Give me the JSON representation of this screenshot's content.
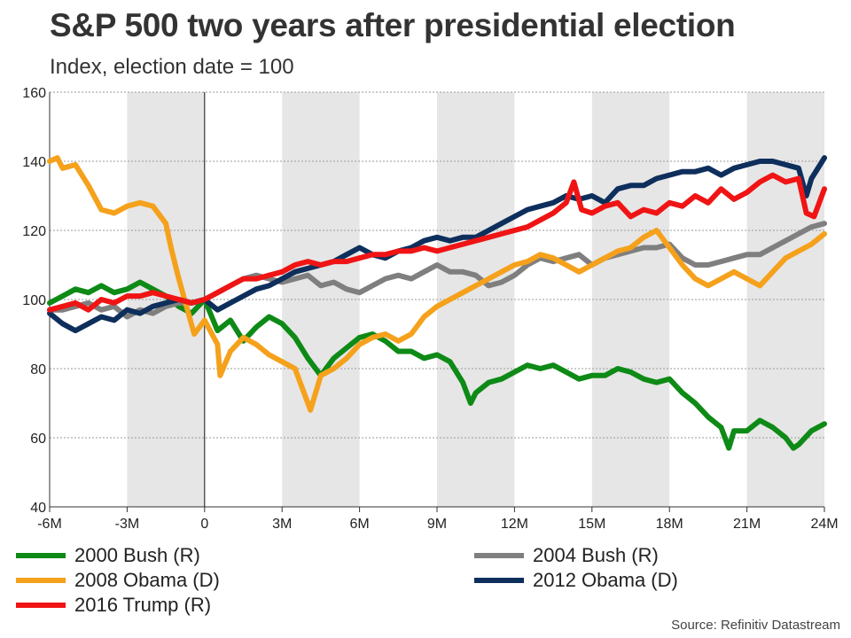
{
  "title": "S&P 500 two years after presidential election",
  "subtitle": "Index, election date = 100",
  "source": "Source: Refinitiv Datastream",
  "chart_data": {
    "type": "line",
    "title": "S&P 500 two years after presidential election",
    "ylabel": "Index, election date = 100",
    "xlabel": "",
    "xlim": [
      -6,
      24
    ],
    "ylim": [
      40,
      160
    ],
    "x_ticks": [
      -6,
      -3,
      0,
      3,
      6,
      9,
      12,
      15,
      18,
      21,
      24
    ],
    "x_tick_labels": [
      "-6M",
      "-3M",
      "0",
      "3M",
      "6M",
      "9M",
      "12M",
      "15M",
      "18M",
      "21M",
      "24M"
    ],
    "y_ticks": [
      40,
      60,
      80,
      100,
      120,
      140,
      160
    ],
    "y_tick_labels": [
      "40",
      "60",
      "80",
      "100",
      "120",
      "140",
      "160"
    ],
    "shaded_bands": [
      [
        -3,
        0
      ],
      [
        3,
        6
      ],
      [
        9,
        12
      ],
      [
        15,
        18
      ],
      [
        21,
        24
      ]
    ],
    "reference_line_x": 0,
    "series": [
      {
        "name": "2000 Bush (R)",
        "color": "#0e8a16",
        "x": [
          -6,
          -5.5,
          -5,
          -4.5,
          -4,
          -3.5,
          -3,
          -2.5,
          -2,
          -1.5,
          -1,
          -0.5,
          0,
          0.5,
          1,
          1.5,
          2,
          2.5,
          3,
          3.5,
          4,
          4.5,
          5,
          5.5,
          6,
          6.5,
          7,
          7.5,
          8,
          8.5,
          9,
          9.5,
          10,
          10.3,
          10.5,
          11,
          11.5,
          12,
          12.5,
          13,
          13.5,
          14,
          14.5,
          15,
          15.5,
          16,
          16.5,
          17,
          17.5,
          18,
          18.5,
          19,
          19.5,
          20,
          20.3,
          20.5,
          21,
          21.5,
          22,
          22.5,
          22.8,
          23,
          23.5,
          24
        ],
        "values": [
          99,
          101,
          103,
          102,
          104,
          102,
          103,
          105,
          103,
          101,
          98,
          96,
          100,
          91,
          94,
          88,
          92,
          95,
          93,
          89,
          83,
          78,
          83,
          86,
          89,
          90,
          88,
          85,
          85,
          83,
          84,
          82,
          76,
          70,
          73,
          76,
          77,
          79,
          81,
          80,
          81,
          79,
          77,
          78,
          78,
          80,
          79,
          77,
          76,
          77,
          73,
          70,
          66,
          63,
          57,
          62,
          62,
          65,
          63,
          60,
          57,
          58,
          62,
          64
        ]
      },
      {
        "name": "2004 Bush (R)",
        "color": "#7f7f7f",
        "x": [
          -6,
          -5.5,
          -5,
          -4.5,
          -4,
          -3.5,
          -3,
          -2.5,
          -2,
          -1.5,
          -1,
          -0.5,
          0,
          0.5,
          1,
          1.5,
          2,
          2.5,
          3,
          3.5,
          4,
          4.5,
          5,
          5.5,
          6,
          6.5,
          7,
          7.5,
          8,
          8.5,
          9,
          9.5,
          10,
          10.5,
          11,
          11.5,
          12,
          12.5,
          13,
          13.5,
          14,
          14.5,
          15,
          15.5,
          16,
          16.5,
          17,
          17.5,
          18,
          18.5,
          19,
          19.5,
          20,
          20.5,
          21,
          21.5,
          22,
          22.5,
          23,
          23.5,
          24
        ],
        "values": [
          97,
          97,
          98,
          99,
          97,
          98,
          95,
          97,
          96,
          98,
          99,
          99,
          100,
          102,
          104,
          106,
          107,
          106,
          105,
          106,
          107,
          104,
          105,
          103,
          102,
          104,
          106,
          107,
          106,
          108,
          110,
          108,
          108,
          107,
          104,
          105,
          107,
          110,
          112,
          111,
          112,
          113,
          110,
          112,
          113,
          114,
          115,
          115,
          116,
          112,
          110,
          110,
          111,
          112,
          113,
          113,
          115,
          117,
          119,
          121,
          122
        ]
      },
      {
        "name": "2008 Obama (D)",
        "color": "#f5a11c",
        "x": [
          -6,
          -5.7,
          -5.5,
          -5,
          -4.5,
          -4,
          -3.5,
          -3,
          -2.5,
          -2,
          -1.5,
          -1.3,
          -1,
          -0.7,
          -0.4,
          0,
          0.5,
          0.6,
          1,
          1.5,
          2,
          2.5,
          3,
          3.5,
          3.9,
          4.1,
          4.5,
          5,
          5.5,
          6,
          6.5,
          7,
          7.5,
          8,
          8.5,
          9,
          9.5,
          10,
          10.5,
          11,
          11.5,
          12,
          12.5,
          13,
          13.5,
          14,
          14.5,
          15,
          15.5,
          16,
          16.5,
          17,
          17.5,
          18,
          18.5,
          19,
          19.5,
          20,
          20.5,
          21,
          21.5,
          22,
          22.5,
          23,
          23.5,
          24
        ],
        "values": [
          140,
          141,
          138,
          139,
          133,
          126,
          125,
          127,
          128,
          127,
          122,
          115,
          106,
          98,
          90,
          94,
          87,
          78,
          85,
          89,
          87,
          84,
          82,
          80,
          72,
          68,
          78,
          80,
          83,
          87,
          89,
          90,
          88,
          90,
          95,
          98,
          100,
          102,
          104,
          106,
          108,
          110,
          111,
          113,
          112,
          110,
          108,
          110,
          112,
          114,
          115,
          118,
          120,
          115,
          110,
          106,
          104,
          106,
          108,
          106,
          104,
          108,
          112,
          114,
          116,
          119
        ]
      },
      {
        "name": "2012 Obama (D)",
        "color": "#0e2f5c",
        "x": [
          -6,
          -5.5,
          -5,
          -4.5,
          -4,
          -3.5,
          -3,
          -2.5,
          -2,
          -1.5,
          -1,
          -0.5,
          0,
          0.5,
          1,
          1.5,
          2,
          2.5,
          3,
          3.5,
          4,
          4.5,
          5,
          5.5,
          6,
          6.5,
          7,
          7.5,
          8,
          8.5,
          9,
          9.5,
          10,
          10.5,
          11,
          11.5,
          12,
          12.5,
          13,
          13.5,
          14,
          14.5,
          15,
          15.5,
          16,
          16.5,
          17,
          17.5,
          18,
          18.5,
          19,
          19.5,
          20,
          20.5,
          21,
          21.5,
          22,
          22.5,
          23,
          23.3,
          23.5,
          24
        ],
        "values": [
          96,
          93,
          91,
          93,
          95,
          94,
          97,
          96,
          98,
          99,
          100,
          99,
          100,
          97,
          99,
          101,
          103,
          104,
          106,
          108,
          109,
          110,
          111,
          113,
          115,
          113,
          112,
          114,
          115,
          117,
          118,
          117,
          118,
          118,
          120,
          122,
          124,
          126,
          127,
          128,
          130,
          129,
          130,
          128,
          132,
          133,
          133,
          135,
          136,
          137,
          137,
          138,
          136,
          138,
          139,
          140,
          140,
          139,
          138,
          130,
          135,
          141
        ]
      },
      {
        "name": "2016 Trump (R)",
        "color": "#f01414",
        "x": [
          -6,
          -5.5,
          -5,
          -4.5,
          -4,
          -3.5,
          -3,
          -2.5,
          -2,
          -1.5,
          -1,
          -0.5,
          0,
          0.5,
          1,
          1.5,
          2,
          2.5,
          3,
          3.5,
          4,
          4.5,
          5,
          5.5,
          6,
          6.5,
          7,
          7.5,
          8,
          8.5,
          9,
          9.5,
          10,
          10.5,
          11,
          11.5,
          12,
          12.5,
          13,
          13.5,
          14,
          14.3,
          14.6,
          15,
          15.5,
          16,
          16.5,
          17,
          17.5,
          18,
          18.5,
          19,
          19.5,
          20,
          20.5,
          21,
          21.5,
          22,
          22.5,
          23,
          23.3,
          23.6,
          24
        ],
        "values": [
          97,
          98,
          99,
          97,
          100,
          99,
          101,
          101,
          102,
          101,
          100,
          99,
          100,
          102,
          104,
          106,
          106,
          107,
          108,
          110,
          111,
          110,
          111,
          111,
          112,
          113,
          113,
          114,
          114,
          115,
          114,
          115,
          116,
          117,
          118,
          119,
          120,
          121,
          123,
          125,
          128,
          134,
          126,
          125,
          127,
          128,
          124,
          126,
          125,
          128,
          127,
          130,
          128,
          132,
          129,
          131,
          134,
          136,
          134,
          135,
          125,
          124,
          132
        ]
      }
    ]
  }
}
